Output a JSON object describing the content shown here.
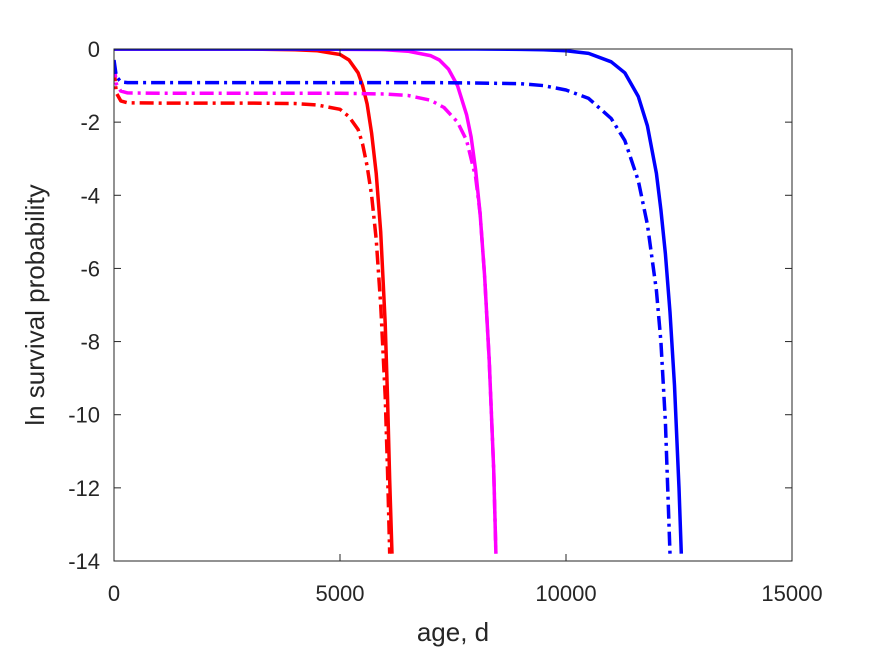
{
  "chart_data": {
    "type": "line",
    "title": "",
    "xlabel": "age, d",
    "ylabel": "ln survival probability",
    "xlim": [
      0,
      15000
    ],
    "ylim": [
      -14,
      0
    ],
    "xticks": [
      0,
      5000,
      10000,
      15000
    ],
    "yticks": [
      -14,
      -12,
      -10,
      -8,
      -6,
      -4,
      -2,
      0
    ],
    "xtick_labels": [
      "0",
      "5000",
      "10000",
      "15000"
    ],
    "ytick_labels": [
      "-14",
      "-12",
      "-10",
      "-8",
      "-6",
      "-4",
      "-2",
      "0"
    ],
    "grid": false,
    "legend": "none",
    "series": [
      {
        "color": "#ff0000",
        "style": "solid",
        "x": [
          0,
          1000,
          2000,
          3000,
          4000,
          4500,
          5000,
          5200,
          5400,
          5500,
          5600,
          5700,
          5800,
          5900,
          6000,
          6050,
          6100,
          6150
        ],
        "y": [
          0,
          0,
          0,
          0,
          -0.02,
          -0.05,
          -0.15,
          -0.3,
          -0.65,
          -1.0,
          -1.5,
          -2.3,
          -3.4,
          -5.0,
          -7.5,
          -9.5,
          -11.8,
          -13.8
        ]
      },
      {
        "color": "#ff0000",
        "style": "dashdot",
        "x": [
          0,
          50,
          150,
          300,
          1000,
          2000,
          3000,
          4000,
          4500,
          5000,
          5200,
          5400,
          5500,
          5600,
          5700,
          5800,
          5900,
          6000,
          6050,
          6100
        ],
        "y": [
          -0.5,
          -1.2,
          -1.42,
          -1.47,
          -1.48,
          -1.48,
          -1.48,
          -1.49,
          -1.53,
          -1.65,
          -1.85,
          -2.2,
          -2.6,
          -3.2,
          -4.0,
          -5.2,
          -7.0,
          -9.5,
          -11.5,
          -13.8
        ]
      },
      {
        "color": "#ff00ff",
        "style": "solid",
        "x": [
          0,
          2000,
          4000,
          6000,
          6500,
          7000,
          7200,
          7400,
          7600,
          7800,
          7900,
          8000,
          8100,
          8200,
          8300,
          8400,
          8450
        ],
        "y": [
          0,
          0,
          0,
          -0.02,
          -0.06,
          -0.18,
          -0.3,
          -0.55,
          -1.0,
          -1.8,
          -2.4,
          -3.3,
          -4.5,
          -6.2,
          -8.5,
          -11.5,
          -13.8
        ]
      },
      {
        "color": "#ff00ff",
        "style": "dashdot",
        "x": [
          0,
          50,
          150,
          300,
          1000,
          3000,
          5000,
          6000,
          6500,
          7000,
          7300,
          7600,
          7800,
          8000,
          8100,
          8200,
          8300,
          8400,
          8450
        ],
        "y": [
          -0.4,
          -0.95,
          -1.15,
          -1.2,
          -1.21,
          -1.21,
          -1.21,
          -1.23,
          -1.27,
          -1.4,
          -1.6,
          -2.0,
          -2.5,
          -3.5,
          -4.5,
          -6.2,
          -8.5,
          -11.5,
          -13.8
        ]
      },
      {
        "color": "#0000ff",
        "style": "solid",
        "x": [
          0,
          3000,
          6000,
          8000,
          9000,
          9500,
          10000,
          10500,
          11000,
          11300,
          11600,
          11800,
          12000,
          12100,
          12200,
          12300,
          12400,
          12500,
          12550
        ],
        "y": [
          0,
          0,
          0,
          0,
          -0.01,
          -0.02,
          -0.05,
          -0.12,
          -0.35,
          -0.65,
          -1.3,
          -2.1,
          -3.4,
          -4.4,
          -5.6,
          -7.2,
          -9.2,
          -12.0,
          -13.8
        ]
      },
      {
        "color": "#0000ff",
        "style": "dashdot",
        "x": [
          0,
          50,
          150,
          300,
          1000,
          3000,
          5000,
          7000,
          8000,
          9000,
          9500,
          10000,
          10500,
          11000,
          11300,
          11600,
          11800,
          12000,
          12100,
          12200,
          12300
        ],
        "y": [
          -0.3,
          -0.75,
          -0.9,
          -0.92,
          -0.92,
          -0.92,
          -0.92,
          -0.92,
          -0.93,
          -0.95,
          -1.0,
          -1.12,
          -1.35,
          -1.9,
          -2.5,
          -3.6,
          -4.8,
          -6.6,
          -8.0,
          -10.2,
          -13.8
        ]
      }
    ]
  }
}
